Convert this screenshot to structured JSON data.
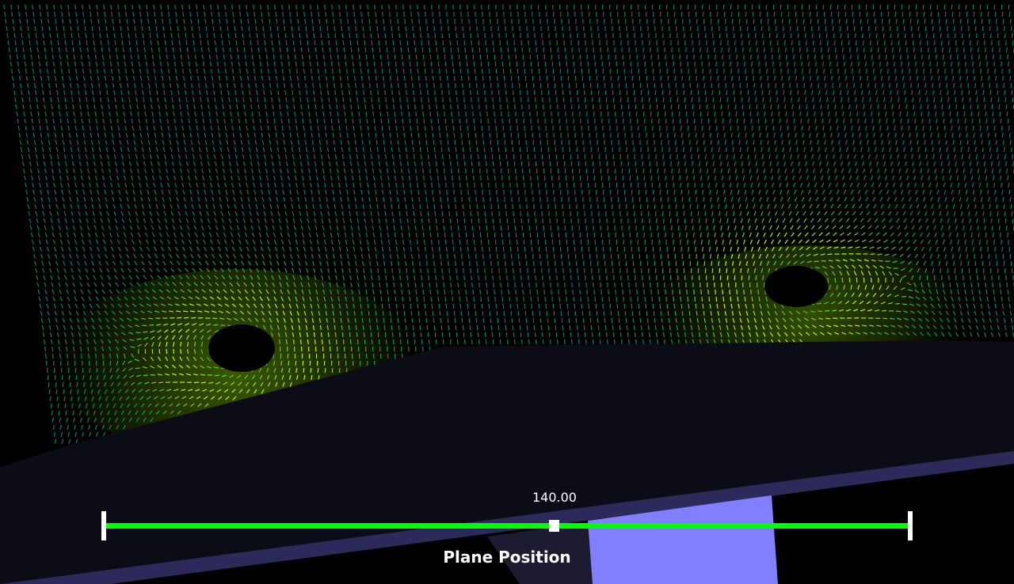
{
  "viewer": {
    "background_color": "#000000",
    "vector_color_low": "#0a2a7a",
    "vector_color_mid": "#009966",
    "vector_color_high": "#aaff00",
    "wall_color": "#0c0c16",
    "wall_edge_color": "#2c2a5a",
    "block_color": "#8080ff"
  },
  "slider": {
    "value_text": "140.00",
    "title": "Plane Position",
    "track_color": "#00ff00",
    "handle_color": "#ffffff",
    "value": 140,
    "fraction": 0.56
  }
}
